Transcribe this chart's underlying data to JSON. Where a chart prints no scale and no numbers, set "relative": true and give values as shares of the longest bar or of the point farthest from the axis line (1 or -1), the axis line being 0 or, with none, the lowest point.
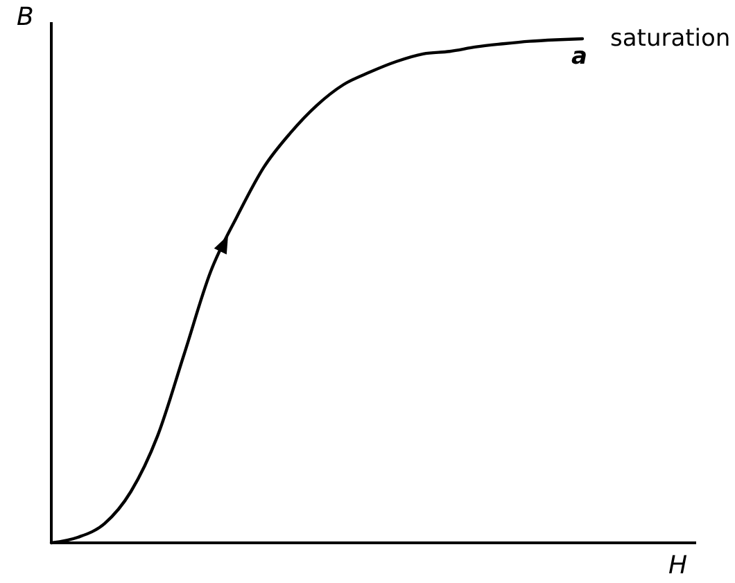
{
  "chart_data": {
    "type": "line",
    "relative": true,
    "xlabel": "H",
    "ylabel": "B",
    "categories": [
      null,
      null,
      null,
      null,
      null,
      null,
      null,
      null,
      null,
      null,
      null,
      null,
      null,
      null,
      null,
      null,
      null,
      null,
      null,
      null,
      null
    ],
    "series": [
      {
        "color": "#000000",
        "values": [
          0,
          0.011,
          0.038,
          0.102,
          0.212,
          0.374,
          0.538,
          0.648,
          0.745,
          0.813,
          0.868,
          0.909,
          0.934,
          0.955,
          0.97,
          0.975,
          0.984,
          0.99,
          0.995,
          0.998,
          1
        ]
      }
    ],
    "annotations": [
      "a",
      "saturation"
    ],
    "marker": "none",
    "line_style": "solid"
  }
}
